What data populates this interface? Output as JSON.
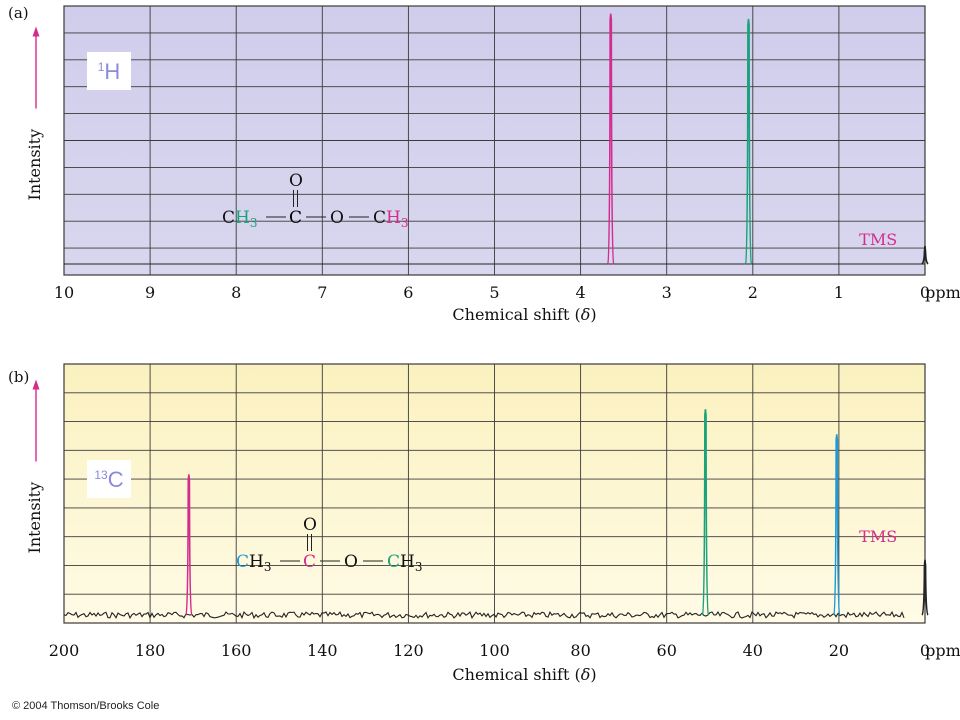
{
  "colors": {
    "panel_a_bg": "#d9d7ee",
    "panel_b_bg": "#fbf3cc",
    "grid": "#3a3a3a",
    "baseline": "#222222",
    "magenta": "#d42b8e",
    "green": "#1aa37a",
    "blue": "#1e9ad6",
    "nucleus_label_bg": "#ffffff",
    "nucleus_label_a": "#8a8adf",
    "nucleus_label_b": "#8a8adf"
  },
  "chart_data": [
    {
      "type": "line",
      "panel_label": "(a)",
      "nucleus_label": {
        "sup": "1",
        "main": "H"
      },
      "ylabel": "Intensity",
      "xlabel_prefix": "Chemical shift (",
      "xlabel_symbol": "δ",
      "xlabel_suffix": ")",
      "x_unit": "ppm",
      "xlim": [
        10,
        0
      ],
      "x_reversed": true,
      "ylim": [
        0,
        1
      ],
      "xticks": [
        10,
        9,
        8,
        7,
        6,
        5,
        4,
        3,
        2,
        1,
        0
      ],
      "grid": true,
      "grid_rows": 10,
      "noise": false,
      "molecule": {
        "ch3_left": "CH",
        "sub_left": "3",
        "c": "C",
        "o_ring": "O",
        "o_carbonyl": "O",
        "ch3_right": "CH",
        "sub_right": "3",
        "left_color": "green",
        "c_color": "black",
        "right_color": "magenta",
        "left_ch_color": "black"
      },
      "peaks": [
        {
          "x": 3.65,
          "height": 0.97,
          "color": "magenta"
        },
        {
          "x": 2.05,
          "height": 0.95,
          "color": "green"
        },
        {
          "x": 0.0,
          "height": 0.07,
          "color": "baseline"
        }
      ],
      "annotations": [
        {
          "text": "TMS",
          "x": 0.3,
          "color": "magenta"
        }
      ]
    },
    {
      "type": "line",
      "panel_label": "(b)",
      "nucleus_label": {
        "sup": "13",
        "main": "C"
      },
      "ylabel": "Intensity",
      "xlabel_prefix": "Chemical shift (",
      "xlabel_symbol": "δ",
      "xlabel_suffix": ")",
      "x_unit": "ppm",
      "xlim": [
        200,
        0
      ],
      "x_reversed": true,
      "ylim": [
        0,
        1
      ],
      "xticks": [
        200,
        180,
        160,
        140,
        120,
        100,
        80,
        60,
        40,
        20,
        0
      ],
      "grid": true,
      "grid_rows": 9,
      "noise": true,
      "molecule": {
        "ch3_left": "CH",
        "sub_left": "3",
        "c": "C",
        "o_ring": "O",
        "o_carbonyl": "O",
        "ch3_right": "CH",
        "sub_right": "3",
        "left_color": "blue",
        "c_color": "magenta",
        "right_color": "green",
        "left_ch_color": "blue"
      },
      "peaks": [
        {
          "x": 171,
          "height": 0.56,
          "color": "magenta"
        },
        {
          "x": 51,
          "height": 0.82,
          "color": "green"
        },
        {
          "x": 20.5,
          "height": 0.72,
          "color": "blue"
        },
        {
          "x": 0.0,
          "height": 0.22,
          "color": "baseline"
        }
      ],
      "annotations": [
        {
          "text": "TMS",
          "x": 6,
          "color": "magenta"
        }
      ]
    }
  ],
  "copyright": "© 2004 Thomson/Brooks Cole"
}
